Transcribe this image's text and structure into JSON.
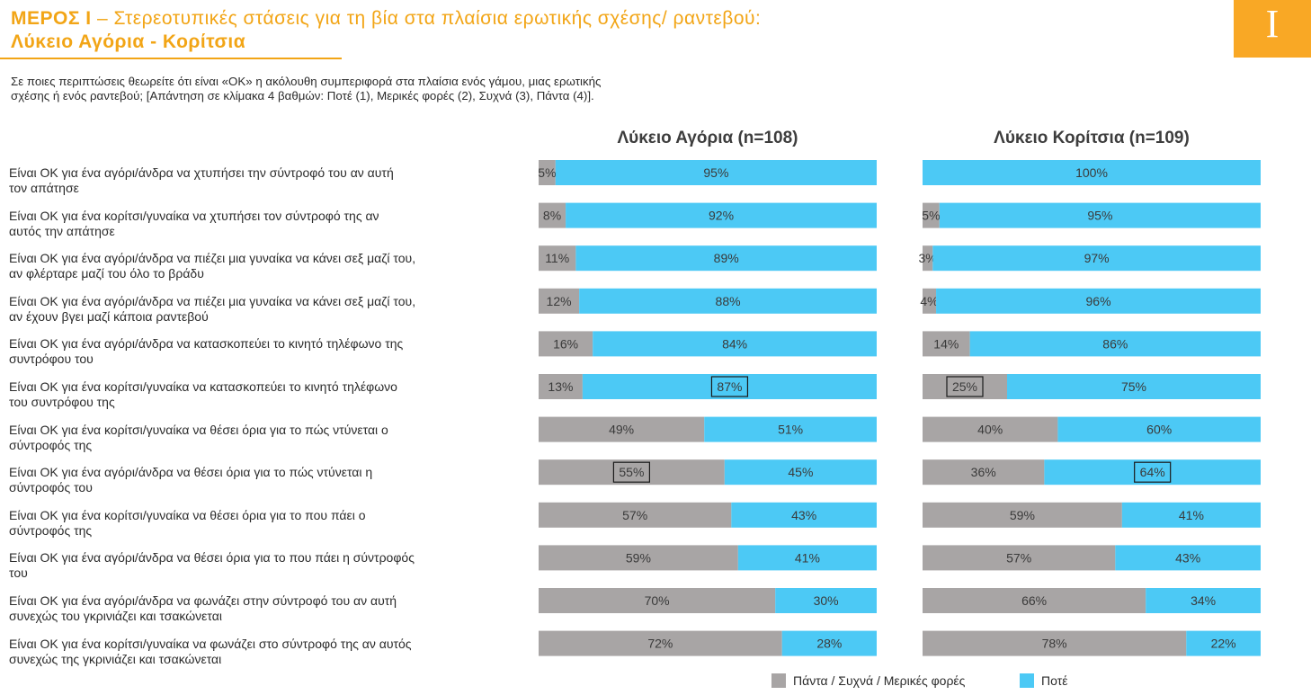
{
  "header": {
    "title_part1": "ΜΕΡΟΣ Ι",
    "title_part2": " – Στερεοτυπικές στάσεις για τη βία στα πλαίσια ερωτικής σχέσης/ ραντεβού:",
    "title_line2": "Λύκειο Αγόρια - Κορίτσια",
    "section_badge": "I",
    "question_line1": "Σε ποιες περιπτώσεις θεωρείτε ότι είναι «ΟΚ» η ακόλουθη συμπεριφορά στα πλαίσια ενός γάμου, μιας ερωτικής",
    "question_line2": "σχέσης ή ενός ραντεβού; [Απάντηση σε κλίμακα 4 βαθμών: Ποτέ (1), Μερικές φορές (2), Συχνά (3), Πάντα (4)]."
  },
  "colors": {
    "accent": "#F2A516",
    "badge": "#F9A825",
    "series_always_sometimes": "#A8A5A5",
    "series_never": "#4CC9F5"
  },
  "chart_data": {
    "type": "bar",
    "orientation": "horizontal",
    "stacked": true,
    "percent_scale": [
      0,
      100
    ],
    "categories": [
      [
        "Είναι ΟΚ για ένα αγόρι/άνδρα να χτυπήσει την σύντροφό του αν αυτή",
        "τον απάτησε"
      ],
      [
        "Είναι ΟΚ για ένα κορίτσι/γυναίκα να χτυπήσει τον σύντροφό της αν",
        "αυτός την απάτησε"
      ],
      [
        "Είναι ΟΚ για ένα αγόρι/άνδρα να πιέζει μια γυναίκα να κάνει σεξ μαζί του,",
        "αν φλέρταρε μαζί του όλο το βράδυ"
      ],
      [
        "Είναι ΟΚ για ένα αγόρι/άνδρα να πιέζει μια γυναίκα να κάνει σεξ μαζί του,",
        "αν έχουν βγει μαζί κάποια ραντεβού"
      ],
      [
        "Είναι ΟΚ για ένα αγόρι/άνδρα να κατασκοπεύει το κινητό τηλέφωνο της",
        "συντρόφου του"
      ],
      [
        "Είναι ΟΚ για ένα κορίτσι/γυναίκα να κατασκοπεύει το κινητό τηλέφωνο",
        "του συντρόφου της"
      ],
      [
        "Είναι ΟΚ για ένα κορίτσι/γυναίκα να θέσει όρια για το πώς ντύνεται ο",
        "σύντροφός της"
      ],
      [
        "Είναι ΟΚ για ένα αγόρι/άνδρα να θέσει όρια για το πώς ντύνεται η",
        "σύντροφός του"
      ],
      [
        "Είναι ΟΚ για ένα κορίτσι/γυναίκα να θέσει όρια για το που πάει ο",
        "σύντροφός της"
      ],
      [
        "Είναι ΟΚ για ένα αγόρι/άνδρα να θέσει όρια για το που πάει η σύντροφός",
        "του"
      ],
      [
        "Είναι ΟΚ για ένα αγόρι/άνδρα να φωνάζει στην σύντροφό του αν αυτή",
        "συνεχώς του γκρινιάζει και τσακώνεται"
      ],
      [
        "Είναι ΟΚ για ένα κορίτσι/γυναίκα να φωνάζει στο σύντροφό της αν αυτός",
        "συνεχώς της γκρινιάζει και τσακώνεται"
      ]
    ],
    "panels": [
      {
        "title": "Λύκειο Αγόρια (n=108)",
        "series": [
          {
            "name": "Πάντα / Συχνά / Μερικές φορές",
            "values": [
              5,
              8,
              11,
              12,
              16,
              13,
              49,
              55,
              57,
              59,
              70,
              72
            ]
          },
          {
            "name": "Ποτέ",
            "values": [
              95,
              92,
              89,
              88,
              84,
              87,
              51,
              45,
              43,
              41,
              30,
              28
            ]
          }
        ],
        "highlighted": [
          {
            "row": 5,
            "series": 1
          },
          {
            "row": 7,
            "series": 0
          }
        ]
      },
      {
        "title": "Λύκειο Κορίτσια (n=109)",
        "series": [
          {
            "name": "Πάντα / Συχνά / Μερικές φορές",
            "values": [
              0,
              5,
              3,
              4,
              14,
              25,
              40,
              36,
              59,
              57,
              66,
              78
            ]
          },
          {
            "name": "Ποτέ",
            "values": [
              100,
              95,
              97,
              96,
              86,
              75,
              60,
              64,
              41,
              43,
              34,
              22
            ]
          }
        ],
        "highlighted": [
          {
            "row": 5,
            "series": 0
          },
          {
            "row": 7,
            "series": 1
          }
        ]
      }
    ],
    "legend": {
      "position": "bottom",
      "items": [
        "Πάντα / Συχνά / Μερικές φορές",
        "Ποτέ"
      ]
    }
  }
}
